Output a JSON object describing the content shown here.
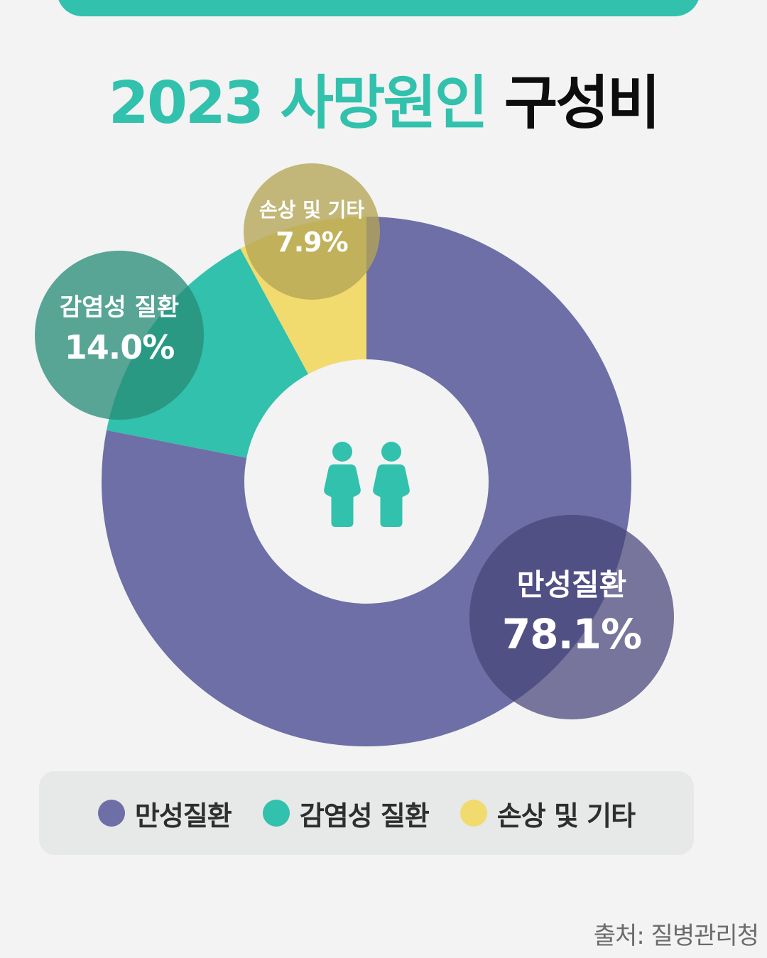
{
  "title": {
    "accent": "2023 사망원인",
    "dark": "구성비"
  },
  "colors": {
    "chronic": "#6e6fa6",
    "infectious": "#31c1ad",
    "other": "#f2db6e",
    "accent": "#31c1ad",
    "background": "#f3f3f3"
  },
  "center_icon": "two-people-icon",
  "bubbles": {
    "other": {
      "label": "손상 및 기타",
      "value": "7.9%"
    },
    "infectious": {
      "label": "감염성 질환",
      "value": "14.0%"
    },
    "chronic": {
      "label": "만성질환",
      "value": "78.1%"
    }
  },
  "legend": [
    {
      "label": "만성질환",
      "color": "#6e6fa6"
    },
    {
      "label": "감염성 질환",
      "color": "#31c1ad"
    },
    {
      "label": "손상 및 기타",
      "color": "#f2db6e"
    }
  ],
  "source": "출처: 질병관리청",
  "chart_data": {
    "type": "pie",
    "subtype": "donut",
    "title": "2023 사망원인 구성비",
    "categories": [
      "만성질환",
      "감염성 질환",
      "손상 및 기타"
    ],
    "values": [
      78.1,
      14.0,
      7.9
    ],
    "unit": "%",
    "colors": [
      "#6e6fa6",
      "#31c1ad",
      "#f2db6e"
    ],
    "start_angle": "12 o'clock",
    "direction": "clockwise",
    "legend_position": "bottom",
    "source": "질병관리청"
  }
}
